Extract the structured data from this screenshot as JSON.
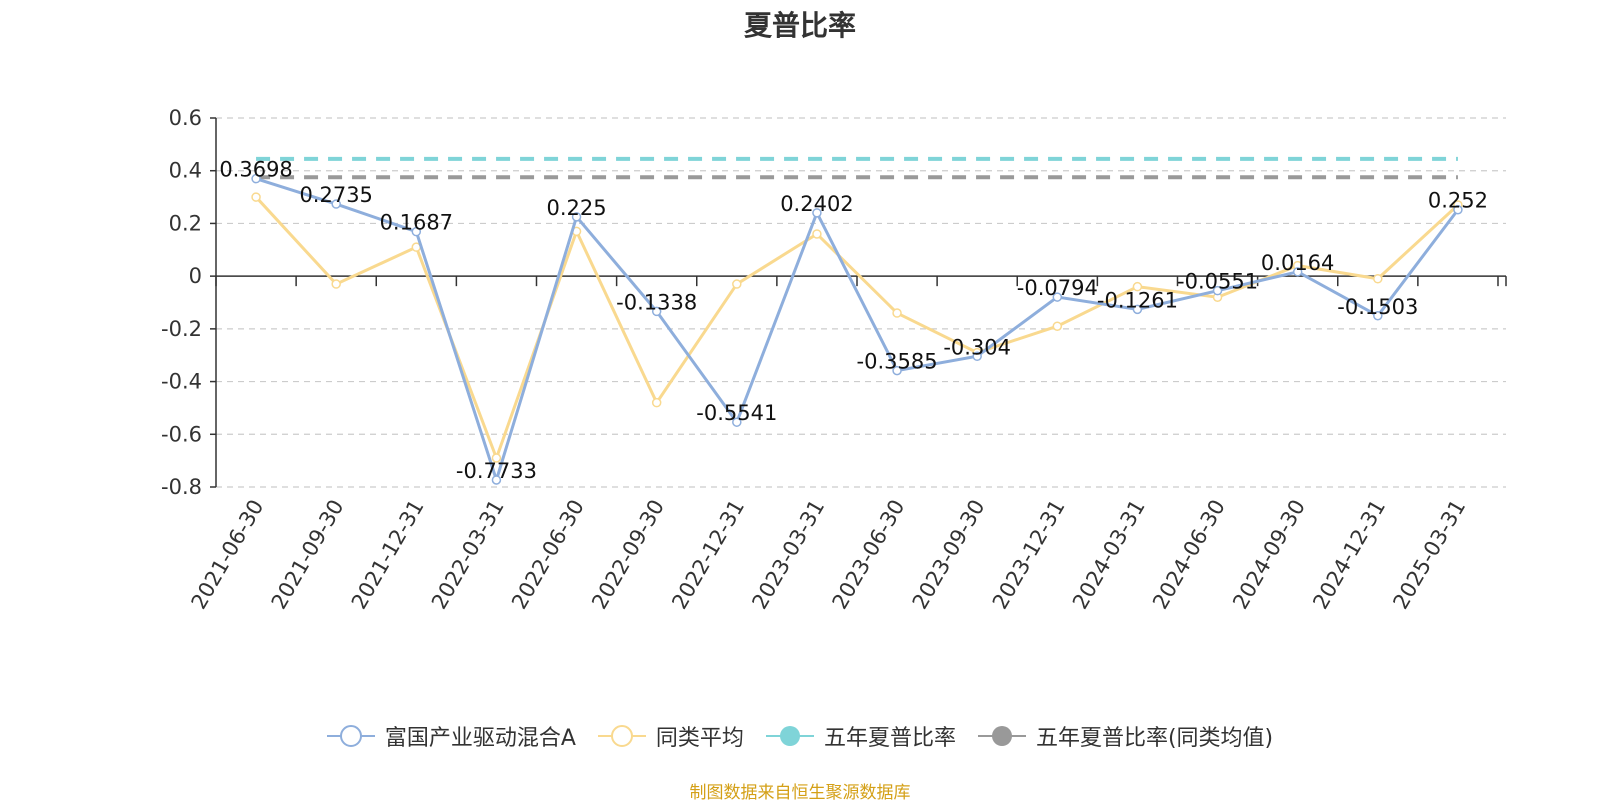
{
  "title": "夏普比率",
  "source_note": "制图数据来自恒生聚源数据库",
  "colors": {
    "fund": "#8eaedc",
    "peer": "#f9d98f",
    "five_year": "#7fd4d8",
    "five_year_peer": "#999999",
    "axis": "#333333",
    "grid": "#cccccc",
    "source": "#d4a017"
  },
  "chart_data": {
    "type": "line",
    "title": "夏普比率",
    "categories": [
      "2021-06-30",
      "2021-09-30",
      "2021-12-31",
      "2022-03-31",
      "2022-06-30",
      "2022-09-30",
      "2022-12-31",
      "2023-03-31",
      "2023-06-30",
      "2023-09-30",
      "2023-12-31",
      "2024-03-31",
      "2024-06-30",
      "2024-09-30",
      "2024-12-31",
      "2025-03-31"
    ],
    "ylim": [
      -0.8,
      0.6
    ],
    "yticks": [
      0.6,
      0.4,
      0.2,
      0,
      -0.2,
      -0.4,
      -0.6,
      -0.8
    ],
    "ytick_labels": [
      "0.6",
      "0.4",
      "0.2",
      "0",
      "-0.2",
      "-0.4",
      "-0.6",
      "-0.8"
    ],
    "grid": true,
    "legend_position": "bottom",
    "series": [
      {
        "name": "富国产业驱动混合A",
        "values": [
          0.3698,
          0.2735,
          0.1687,
          -0.7733,
          0.225,
          -0.1338,
          -0.5541,
          0.2402,
          -0.3585,
          -0.304,
          -0.0794,
          -0.1261,
          -0.0551,
          0.0164,
          -0.1503,
          0.252
        ],
        "labels": [
          "0.3698",
          "0.2735",
          "0.1687",
          "-0.7733",
          "0.225",
          "-0.1338",
          "-0.5541",
          "0.2402",
          "-0.3585",
          "-0.304",
          "-0.0794",
          "-0.1261",
          "-0.0551",
          "0.0164",
          "-0.1503",
          "0.252"
        ]
      },
      {
        "name": "同类平均",
        "values": [
          0.3,
          -0.03,
          0.11,
          -0.69,
          0.17,
          -0.48,
          -0.03,
          0.16,
          -0.14,
          -0.29,
          -0.19,
          -0.04,
          -0.08,
          0.04,
          -0.01,
          0.27
        ]
      },
      {
        "name": "五年夏普比率",
        "values": [
          0.445,
          0.445,
          0.445,
          0.445,
          0.445,
          0.445,
          0.445,
          0.445,
          0.445,
          0.445,
          0.445,
          0.445,
          0.445,
          0.445,
          0.445,
          0.445
        ]
      },
      {
        "name": "五年夏普比率(同类均值)",
        "values": [
          0.375,
          0.375,
          0.375,
          0.375,
          0.375,
          0.375,
          0.375,
          0.375,
          0.375,
          0.375,
          0.375,
          0.375,
          0.375,
          0.375,
          0.375,
          0.375
        ]
      }
    ]
  }
}
